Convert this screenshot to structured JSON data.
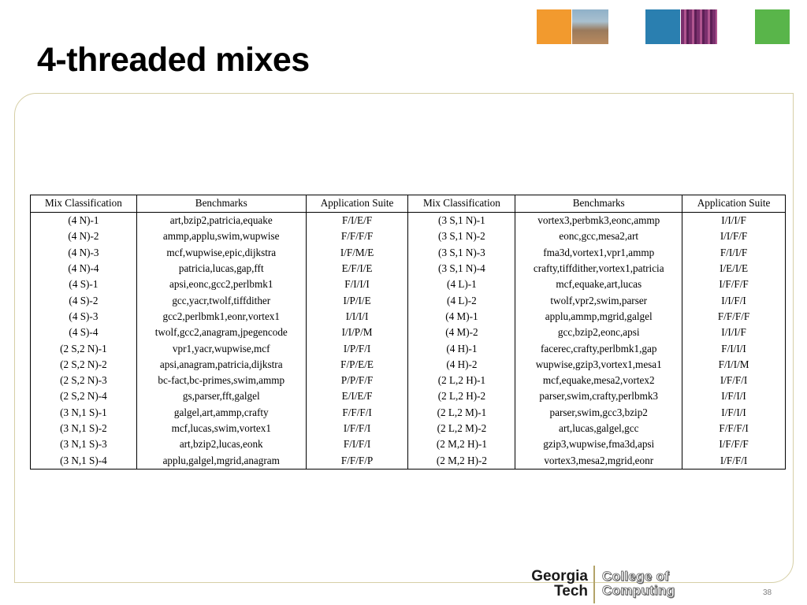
{
  "slide": {
    "title": "4-threaded mixes",
    "page_number": "38"
  },
  "logo": {
    "line1": "Georgia",
    "line2": "Tech",
    "college_line1": "College of",
    "college_line2": "Computing"
  },
  "table": {
    "headers": [
      "Mix Classification",
      "Benchmarks",
      "Application Suite",
      "Mix Classification",
      "Benchmarks",
      "Application Suite"
    ],
    "rows": [
      [
        "(4 N)-1",
        "art,bzip2,patricia,equake",
        "F/I/E/F",
        "(3 S,1 N)-1",
        "vortex3,perbmk3,eonc,ammp",
        "I/I/I/F"
      ],
      [
        "(4 N)-2",
        "ammp,applu,swim,wupwise",
        "F/F/F/F",
        "(3 S,1 N)-2",
        "eonc,gcc,mesa2,art",
        "I/I/F/F"
      ],
      [
        "(4 N)-3",
        "mcf,wupwise,epic,dijkstra",
        "I/F/M/E",
        "(3 S,1 N)-3",
        "fma3d,vortex1,vpr1,ammp",
        "F/I/I/F"
      ],
      [
        "(4 N)-4",
        "patricia,lucas,gap,fft",
        "E/F/I/E",
        "(3 S,1 N)-4",
        "crafty,tiffdither,vortex1,patricia",
        "I/E/I/E"
      ],
      [
        "(4 S)-1",
        "apsi,eonc,gcc2,perlbmk1",
        "F/I/I/I",
        "(4 L)-1",
        "mcf,equake,art,lucas",
        "I/F/F/F"
      ],
      [
        "(4 S)-2",
        "gcc,yacr,twolf,tiffdither",
        "I/P/I/E",
        "(4 L)-2",
        "twolf,vpr2,swim,parser",
        "I/I/F/I"
      ],
      [
        "(4 S)-3",
        "gcc2,perlbmk1,eonr,vortex1",
        "I/I/I/I",
        "(4 M)-1",
        "applu,ammp,mgrid,galgel",
        "F/F/F/F"
      ],
      [
        "(4 S)-4",
        "twolf,gcc2,anagram,jpegencode",
        "I/I/P/M",
        "(4 M)-2",
        "gcc,bzip2,eonc,apsi",
        "I/I/I/F"
      ],
      [
        "(2 S,2 N)-1",
        "vpr1,yacr,wupwise,mcf",
        "I/P/F/I",
        "(4 H)-1",
        "facerec,crafty,perlbmk1,gap",
        "F/I/I/I"
      ],
      [
        "(2 S,2 N)-2",
        "apsi,anagram,patricia,dijkstra",
        "F/P/E/E",
        "(4 H)-2",
        "wupwise,gzip3,vortex1,mesa1",
        "F/I/I/M"
      ],
      [
        "(2 S,2 N)-3",
        "bc-fact,bc-primes,swim,ammp",
        "P/P/F/F",
        "(2 L,2 H)-1",
        "mcf,equake,mesa2,vortex2",
        "I/F/F/I"
      ],
      [
        "(2 S,2 N)-4",
        "gs,parser,fft,galgel",
        "E/I/E/F",
        "(2 L,2 H)-2",
        "parser,swim,crafty,perlbmk3",
        "I/F/I/I"
      ],
      [
        "(3 N,1 S)-1",
        "galgel,art,ammp,crafty",
        "F/F/F/I",
        "(2 L,2 M)-1",
        "parser,swim,gcc3,bzip2",
        "I/F/I/I"
      ],
      [
        "(3 N,1 S)-2",
        "mcf,lucas,swim,vortex1",
        "I/F/F/I",
        "(2 L,2 M)-2",
        "art,lucas,galgel,gcc",
        "F/F/F/I"
      ],
      [
        "(3 N,1 S)-3",
        "art,bzip2,lucas,eonk",
        "F/I/F/I",
        "(2 M,2 H)-1",
        "gzip3,wupwise,fma3d,apsi",
        "I/F/F/F"
      ],
      [
        "(3 N,1 S)-4",
        "applu,galgel,mgrid,anagram",
        "F/F/F/P",
        "(2 M,2 H)-2",
        "vortex3,mesa2,mgrid,eonr",
        "I/F/F/I"
      ]
    ]
  },
  "colors": {
    "panel_border": "#d6cfa6",
    "gt_gold": "#b3a369",
    "thumb_orange": "#f29a2e",
    "thumb_blue": "#2a7fb0",
    "thumb_green": "#59b54a"
  }
}
